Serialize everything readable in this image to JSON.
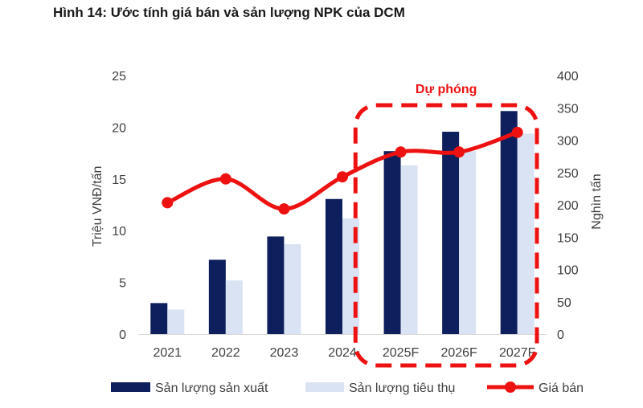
{
  "title": "Hình 14: Ước tính giá bán và sản lượng NPK của DCM",
  "chart_data": {
    "type": "bar+line",
    "categories": [
      "2021",
      "2022",
      "2023",
      "2024",
      "2025F",
      "2026F",
      "2027F"
    ],
    "series": [
      {
        "name": "Sản lượng sản xuất",
        "kind": "bar",
        "axis": "right",
        "color": "#0d1f5c",
        "values": [
          48,
          115,
          151,
          209,
          283,
          313,
          345
        ]
      },
      {
        "name": "Sản lượng tiêu thụ",
        "kind": "bar",
        "axis": "right",
        "color": "#dae3f3",
        "values": [
          38,
          83,
          139,
          179,
          261,
          283,
          310
        ]
      },
      {
        "name": "Giá bán",
        "kind": "line",
        "axis": "left",
        "color": "#ee1111",
        "values": [
          12.7,
          15.0,
          12.1,
          15.2,
          17.6,
          17.6,
          19.5
        ]
      }
    ],
    "yleft": {
      "label": "Triệu VNĐ/tấn",
      "min": 0,
      "max": 25,
      "ticks": [
        "0",
        "5",
        "10",
        "15",
        "20",
        "25"
      ]
    },
    "yright": {
      "label": "Nghìn tấn",
      "min": 0,
      "max": 400,
      "ticks": [
        "0",
        "50",
        "100",
        "150",
        "200",
        "250",
        "300",
        "350",
        "400"
      ]
    },
    "annotation": {
      "text": "Dự phóng",
      "color": "#ee1111",
      "covers": [
        "2025F",
        "2026F",
        "2027F"
      ]
    },
    "legend_position": "bottom"
  }
}
